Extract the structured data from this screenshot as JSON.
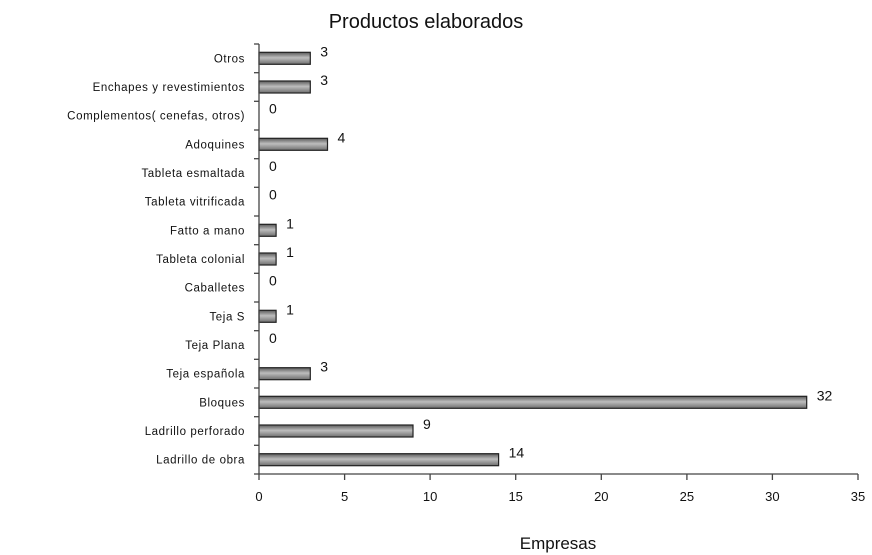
{
  "chart_data": {
    "type": "bar",
    "orientation": "horizontal",
    "title": "Productos elaborados",
    "xlabel": "Empresas",
    "ylabel": "",
    "xlim": [
      0,
      35
    ],
    "xticks": [
      0,
      5,
      10,
      15,
      20,
      25,
      30,
      35
    ],
    "categories": [
      "Otros",
      "Enchapes y revestimientos",
      "Complementos( cenefas, otros)",
      "Adoquines",
      "Tableta esmaltada",
      "Tableta vitrificada",
      "Fatto a mano",
      "Tableta colonial",
      "Caballetes",
      "Teja S",
      "Teja Plana",
      "Teja española",
      "Bloques",
      "Ladrillo perforado",
      "Ladrillo de obra"
    ],
    "values": [
      3,
      3,
      0,
      4,
      0,
      0,
      1,
      1,
      0,
      1,
      0,
      3,
      32,
      9,
      14
    ],
    "grid": false,
    "legend": "none",
    "bar_color": "#8c8c8c"
  }
}
